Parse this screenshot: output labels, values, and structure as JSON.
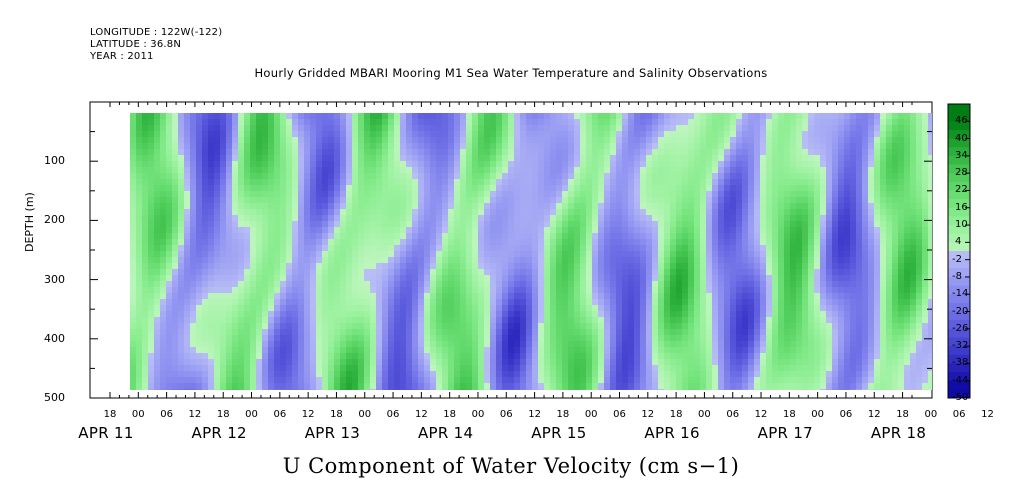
{
  "header": {
    "longitude": "LONGITUDE : 122W(-122)",
    "latitude": "LATITUDE : 36.8N",
    "year": "YEAR : 2011"
  },
  "title": "Hourly Gridded MBARI Mooring M1 Sea Water Temperature and Salinity Observations",
  "variable_title": "U Component of Water Velocity (cm s−1)",
  "chart_data": {
    "type": "heatmap",
    "title": "Hourly Gridded MBARI Mooring M1 Sea Water Temperature and Salinity Observations",
    "xlabel": "",
    "ylabel": "DEPTH (m)",
    "y_ticks": [
      100,
      200,
      300,
      400,
      500
    ],
    "y_range": [
      0,
      500
    ],
    "y_inverted": true,
    "x_hour_ticks": [
      "18",
      "00",
      "06",
      "12",
      "18",
      "00",
      "06",
      "12",
      "18",
      "00",
      "06",
      "12",
      "18",
      "00",
      "06",
      "12",
      "18",
      "00",
      "06",
      "12",
      "18",
      "00",
      "06",
      "12",
      "18",
      "00",
      "06",
      "12",
      "18",
      "00",
      "06",
      "12"
    ],
    "x_day_labels": [
      "APR 11",
      "APR 12",
      "APR 13",
      "APR 14",
      "APR 15",
      "APR 16",
      "APR 17",
      "APR 18"
    ],
    "x_range_hours": [
      0,
      170
    ],
    "colorbar": {
      "levels": [
        46,
        40,
        34,
        28,
        22,
        16,
        10,
        4,
        -2,
        -8,
        -14,
        -20,
        -26,
        -32,
        -38,
        -44,
        -50
      ],
      "min": -50,
      "max": 52
    },
    "colorscale": "blue (negative) to green (positive)",
    "colors": {
      "negative": "#0000a0",
      "neutral": "#ffffff",
      "positive": "#005000"
    }
  }
}
